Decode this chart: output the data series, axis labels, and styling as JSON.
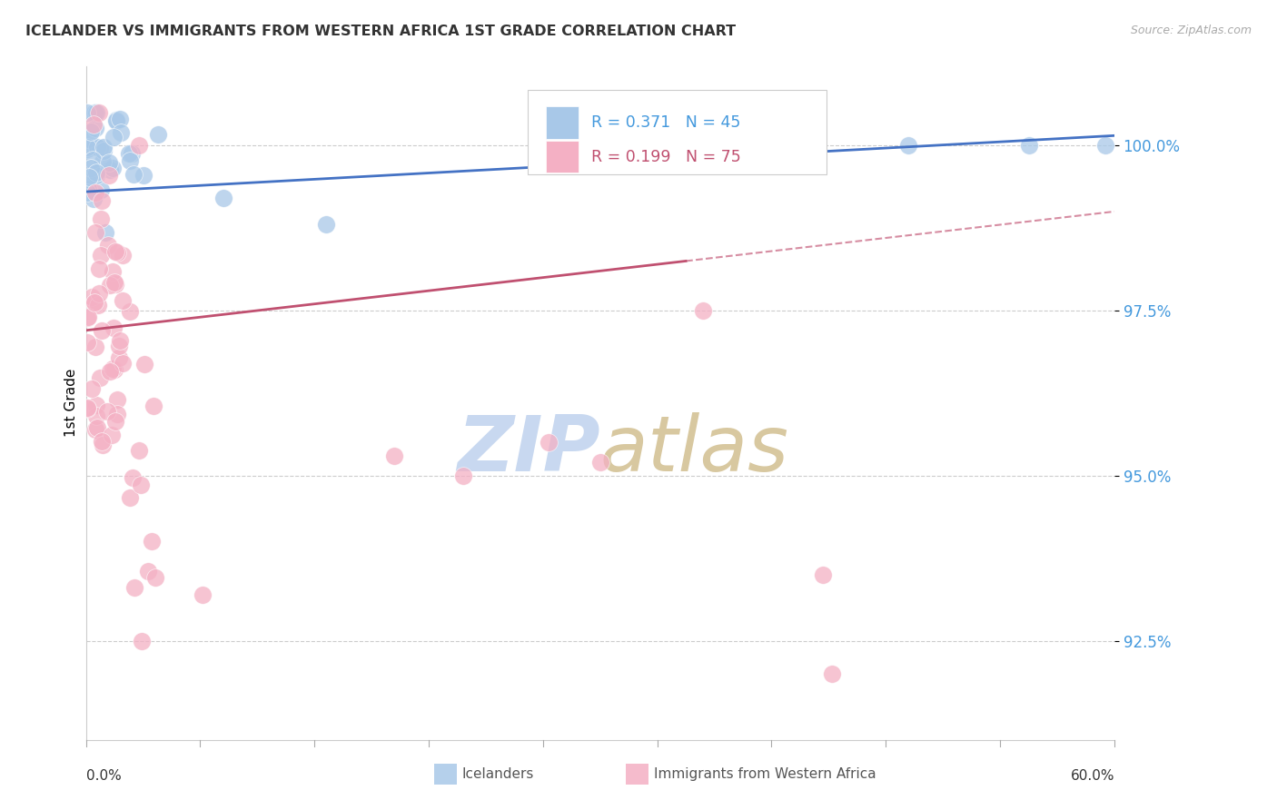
{
  "title": "ICELANDER VS IMMIGRANTS FROM WESTERN AFRICA 1ST GRADE CORRELATION CHART",
  "source": "Source: ZipAtlas.com",
  "ylabel": "1st Grade",
  "yticks": [
    92.5,
    95.0,
    97.5,
    100.0
  ],
  "ytick_labels": [
    "92.5%",
    "95.0%",
    "97.5%",
    "100.0%"
  ],
  "xmin": 0.0,
  "xmax": 60.0,
  "ymin": 91.0,
  "ymax": 101.2,
  "blue_color": "#a8c8e8",
  "pink_color": "#f4b0c4",
  "blue_line_color": "#4472c4",
  "pink_line_color": "#c05070",
  "grid_color": "#cccccc",
  "tick_label_color": "#4499dd",
  "watermark_zip_color": "#c8d8f0",
  "watermark_atlas_color": "#d8c8a0",
  "legend_blue_label": "R = 0.371   N = 45",
  "legend_pink_label": "R = 0.199   N = 75",
  "legend_icelanders": "Icelanders",
  "legend_immigrants": "Immigrants from Western Africa",
  "blue_R": 0.371,
  "blue_N": 45,
  "pink_R": 0.199,
  "pink_N": 75,
  "blue_line_x0": 0.0,
  "blue_line_y0": 99.3,
  "blue_line_x1": 60.0,
  "blue_line_y1": 100.15,
  "pink_line_x0": 0.0,
  "pink_line_y0": 97.2,
  "pink_line_x1": 60.0,
  "pink_line_y1": 99.0,
  "pink_dash_x0": 35.0,
  "pink_dash_x1": 60.0
}
